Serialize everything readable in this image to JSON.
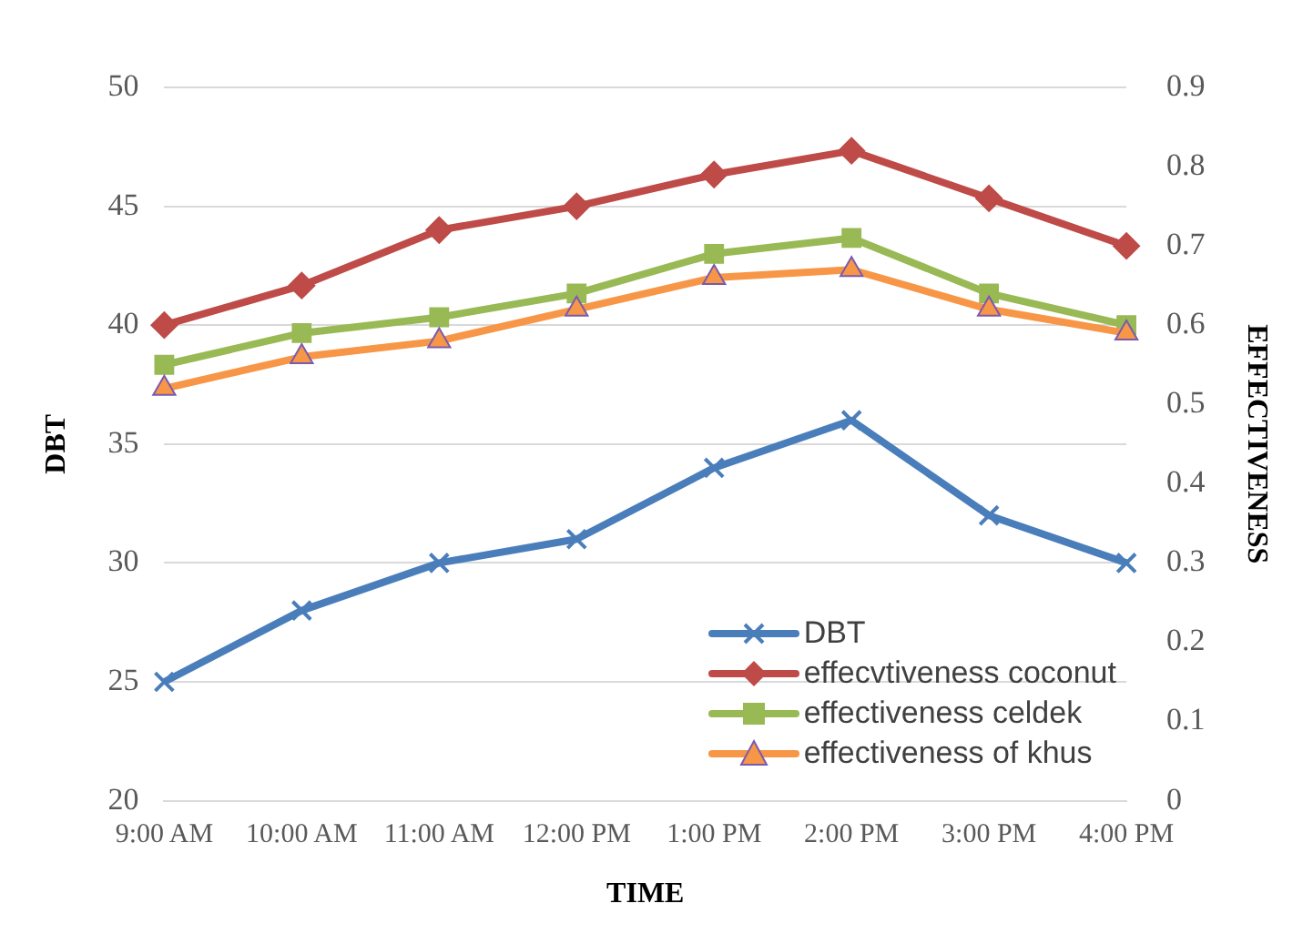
{
  "chart_data": {
    "type": "line",
    "xlabel": "TIME",
    "ylabel": "DBT",
    "y2label": "EFFECTIVENESS",
    "categories": [
      "9:00 AM",
      "10:00 AM",
      "11:00 AM",
      "12:00 PM",
      "1:00 PM",
      "2:00 PM",
      "3:00 PM",
      "4:00 PM"
    ],
    "series": [
      {
        "name": "DBT",
        "color": "#4a7ebb",
        "marker": "cross",
        "values": [
          25,
          28,
          30,
          31,
          34,
          36,
          32,
          30
        ]
      },
      {
        "name": "effecvtiveness coconut",
        "color": "#be4b48",
        "marker": "diamond",
        "axis": "y2",
        "values": [
          0.6,
          0.65,
          0.72,
          0.75,
          0.79,
          0.82,
          0.76,
          0.7
        ]
      },
      {
        "name": "effectiveness celdek",
        "color": "#98b954",
        "marker": "square",
        "axis": "y2",
        "values": [
          0.55,
          0.59,
          0.61,
          0.64,
          0.69,
          0.71,
          0.64,
          0.6
        ]
      },
      {
        "name": "effectiveness of khus",
        "color": "#f79646",
        "marker": "triangle",
        "axis": "y2",
        "values": [
          0.52,
          0.56,
          0.58,
          0.62,
          0.66,
          0.67,
          0.62,
          0.59
        ]
      }
    ],
    "ylim": [
      20,
      50
    ],
    "yticks": [
      20,
      25,
      30,
      35,
      40,
      45,
      50
    ],
    "y2lim": [
      0,
      0.9
    ],
    "y2ticks": [
      0,
      0.1,
      0.2,
      0.3,
      0.4,
      0.5,
      0.6,
      0.7,
      0.8,
      0.9
    ],
    "grid": "y",
    "legend": "bottom right"
  }
}
